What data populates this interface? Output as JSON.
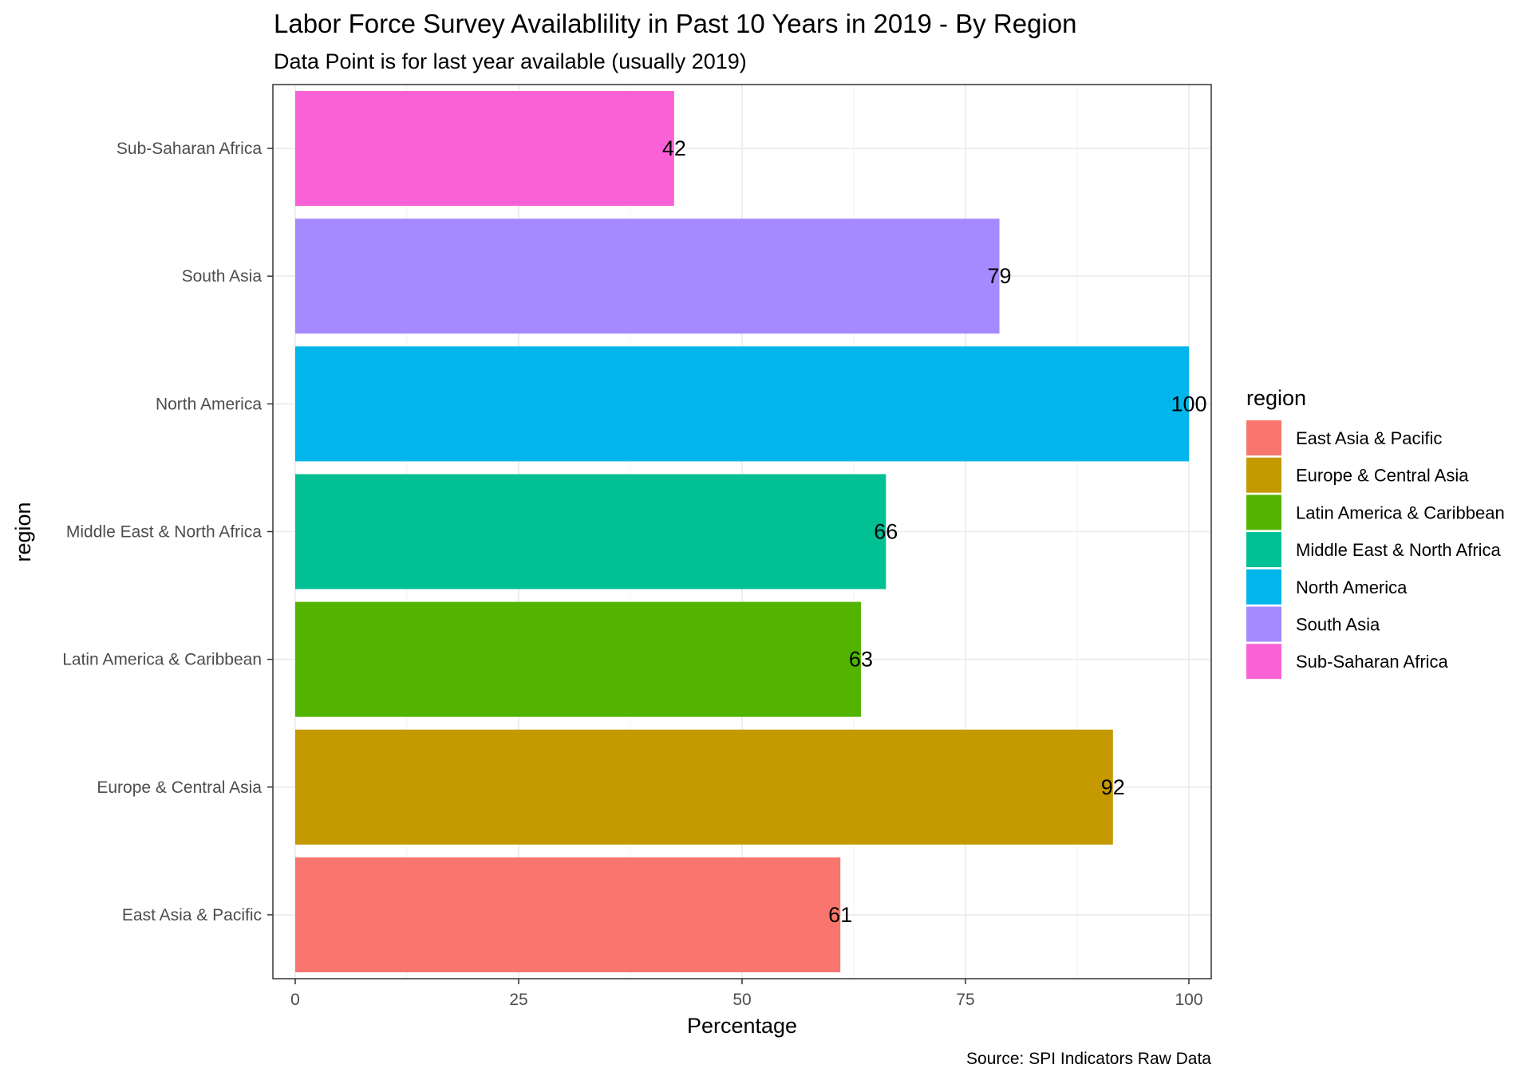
{
  "chart_data": {
    "type": "bar",
    "orientation": "horizontal",
    "title": "Labor Force Survey Availablility in Past 10 Years in 2019 - By Region",
    "subtitle": "Data Point is for last year available (usually 2019)",
    "xlabel": "Percentage",
    "ylabel": "region",
    "caption": "Source: SPI Indicators Raw Data",
    "xlim": [
      -2.5,
      102.5
    ],
    "x_ticks": [
      0,
      25,
      50,
      75,
      100
    ],
    "x_tick_labels": [
      "0",
      "25",
      "50",
      "75",
      "100"
    ],
    "grid": true,
    "legend_position": "right",
    "legend_title": "region",
    "categories": [
      "East Asia & Pacific",
      "Europe & Central Asia",
      "Latin America & Caribbean",
      "Middle East & North Africa",
      "North America",
      "South Asia",
      "Sub-Saharan Africa"
    ],
    "values": [
      61,
      91.5,
      63.3,
      66.1,
      100,
      78.8,
      42.4
    ],
    "data_labels": [
      "61",
      "92",
      "63",
      "66",
      "100",
      "79",
      "42"
    ],
    "colors": [
      "#F8766D",
      "#C49A00",
      "#53B400",
      "#00C094",
      "#00B6EB",
      "#A58AFF",
      "#FB61D7"
    ]
  }
}
